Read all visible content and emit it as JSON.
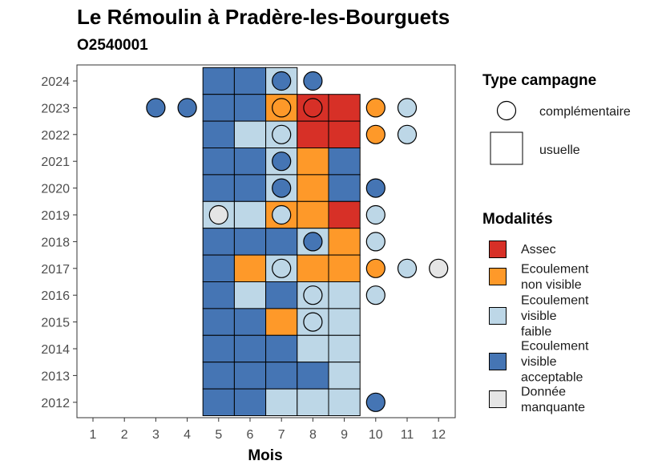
{
  "title": "Le Rémoulin à Pradère-les-Bourguets",
  "subtitle": "O2540001",
  "colors": {
    "assec": "#d73027",
    "ecoulement_non_visible": "#fe9929",
    "ecoulement_visible_faible": "#bdd7e7",
    "ecoulement_visible_acceptable": "#4575b4",
    "donnee_manquante": "#e5e5e5"
  },
  "chart_data": {
    "type": "heatmap",
    "xlabel": "Mois",
    "ylabel": "",
    "x_ticks": [
      1,
      2,
      3,
      4,
      5,
      6,
      7,
      8,
      9,
      10,
      11,
      12
    ],
    "y_ticks": [
      2012,
      2013,
      2014,
      2015,
      2016,
      2017,
      2018,
      2019,
      2020,
      2021,
      2022,
      2023,
      2024
    ],
    "usuelle": [
      {
        "year": 2024,
        "cells": {
          "5": "acceptable",
          "6": "acceptable",
          "7": "faible"
        }
      },
      {
        "year": 2023,
        "cells": {
          "5": "acceptable",
          "6": "acceptable",
          "7": "non_visible",
          "8": "assec",
          "9": "assec"
        }
      },
      {
        "year": 2022,
        "cells": {
          "5": "acceptable",
          "6": "faible",
          "7": "faible",
          "8": "assec",
          "9": "assec"
        }
      },
      {
        "year": 2021,
        "cells": {
          "5": "acceptable",
          "6": "acceptable",
          "7": "faible",
          "8": "non_visible",
          "9": "acceptable"
        }
      },
      {
        "year": 2020,
        "cells": {
          "5": "acceptable",
          "6": "acceptable",
          "7": "faible",
          "8": "non_visible",
          "9": "acceptable"
        }
      },
      {
        "year": 2019,
        "cells": {
          "5": "faible",
          "6": "faible",
          "7": "non_visible",
          "8": "non_visible",
          "9": "assec"
        }
      },
      {
        "year": 2018,
        "cells": {
          "5": "acceptable",
          "6": "acceptable",
          "7": "acceptable",
          "8": "faible",
          "9": "non_visible"
        }
      },
      {
        "year": 2017,
        "cells": {
          "5": "acceptable",
          "6": "non_visible",
          "7": "faible",
          "8": "non_visible",
          "9": "non_visible"
        }
      },
      {
        "year": 2016,
        "cells": {
          "5": "acceptable",
          "6": "faible",
          "7": "acceptable",
          "8": "faible",
          "9": "faible"
        }
      },
      {
        "year": 2015,
        "cells": {
          "5": "acceptable",
          "6": "acceptable",
          "7": "non_visible",
          "8": "faible",
          "9": "faible"
        }
      },
      {
        "year": 2014,
        "cells": {
          "5": "acceptable",
          "6": "acceptable",
          "7": "acceptable",
          "8": "faible",
          "9": "faible"
        }
      },
      {
        "year": 2013,
        "cells": {
          "5": "acceptable",
          "6": "acceptable",
          "7": "acceptable",
          "8": "acceptable",
          "9": "faible"
        }
      },
      {
        "year": 2012,
        "cells": {
          "5": "acceptable",
          "6": "acceptable",
          "7": "faible",
          "8": "faible",
          "9": "faible"
        }
      }
    ],
    "complementaire": [
      {
        "year": 2024,
        "month": 7,
        "modalite": "acceptable"
      },
      {
        "year": 2024,
        "month": 8,
        "modalite": "acceptable"
      },
      {
        "year": 2023,
        "month": 3,
        "modalite": "acceptable"
      },
      {
        "year": 2023,
        "month": 4,
        "modalite": "acceptable"
      },
      {
        "year": 2023,
        "month": 7,
        "modalite": "non_visible"
      },
      {
        "year": 2023,
        "month": 8,
        "modalite": "assec"
      },
      {
        "year": 2023,
        "month": 10,
        "modalite": "non_visible"
      },
      {
        "year": 2023,
        "month": 11,
        "modalite": "faible"
      },
      {
        "year": 2022,
        "month": 7,
        "modalite": "faible"
      },
      {
        "year": 2022,
        "month": 10,
        "modalite": "non_visible"
      },
      {
        "year": 2022,
        "month": 11,
        "modalite": "faible"
      },
      {
        "year": 2021,
        "month": 7,
        "modalite": "acceptable"
      },
      {
        "year": 2020,
        "month": 7,
        "modalite": "acceptable"
      },
      {
        "year": 2020,
        "month": 10,
        "modalite": "acceptable"
      },
      {
        "year": 2019,
        "month": 5,
        "modalite": "manquante"
      },
      {
        "year": 2019,
        "month": 7,
        "modalite": "faible"
      },
      {
        "year": 2019,
        "month": 10,
        "modalite": "faible"
      },
      {
        "year": 2018,
        "month": 8,
        "modalite": "acceptable"
      },
      {
        "year": 2018,
        "month": 10,
        "modalite": "faible"
      },
      {
        "year": 2017,
        "month": 7,
        "modalite": "faible"
      },
      {
        "year": 2017,
        "month": 10,
        "modalite": "non_visible"
      },
      {
        "year": 2017,
        "month": 11,
        "modalite": "faible"
      },
      {
        "year": 2017,
        "month": 12,
        "modalite": "manquante"
      },
      {
        "year": 2016,
        "month": 8,
        "modalite": "faible"
      },
      {
        "year": 2016,
        "month": 10,
        "modalite": "faible"
      },
      {
        "year": 2015,
        "month": 8,
        "modalite": "faible"
      },
      {
        "year": 2012,
        "month": 10,
        "modalite": "acceptable"
      }
    ]
  },
  "legend": {
    "type_title": "Type campagne",
    "type_items": [
      {
        "shape": "circle",
        "label": "complémentaire"
      },
      {
        "shape": "square",
        "label": "usuelle"
      }
    ],
    "mod_title": "Modalités",
    "mod_items": [
      {
        "key": "assec",
        "lines": [
          "Assec"
        ]
      },
      {
        "key": "non_visible",
        "lines": [
          "Ecoulement",
          "non visible"
        ]
      },
      {
        "key": "faible",
        "lines": [
          "Ecoulement",
          "visible",
          "faible"
        ]
      },
      {
        "key": "acceptable",
        "lines": [
          "Ecoulement",
          "visible",
          "acceptable"
        ]
      },
      {
        "key": "manquante",
        "lines": [
          "Donnée",
          "manquante"
        ]
      }
    ]
  }
}
